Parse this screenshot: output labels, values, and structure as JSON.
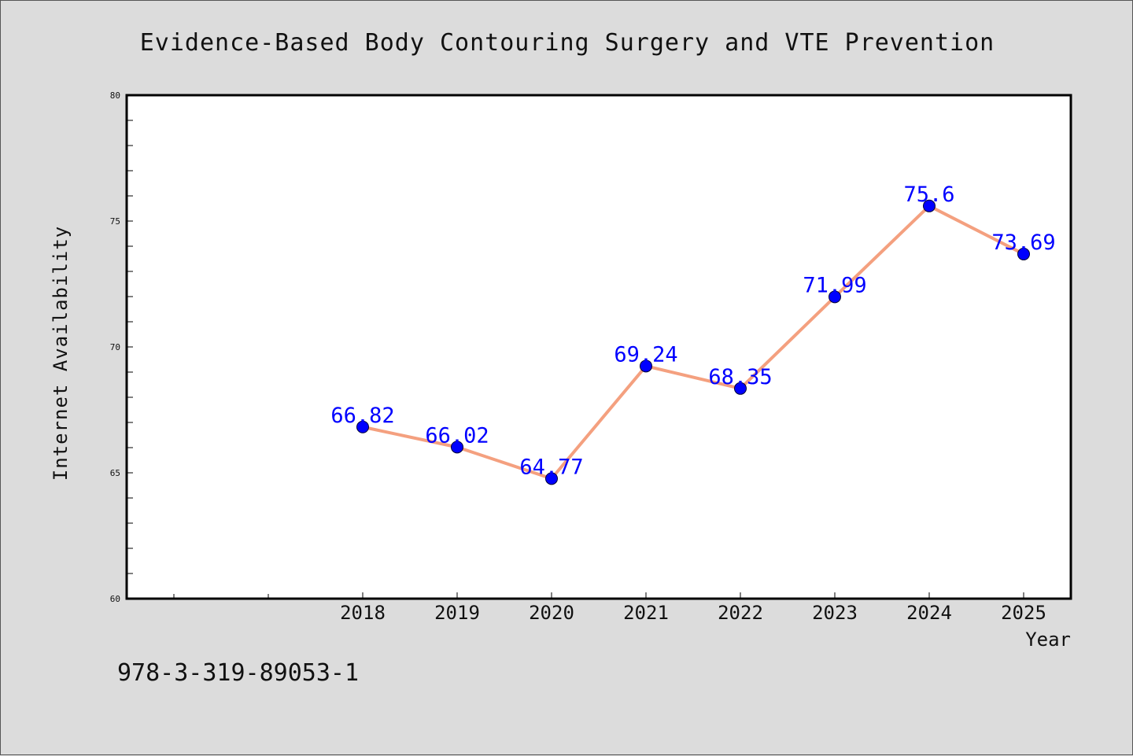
{
  "chart_data": {
    "type": "line",
    "title": "Evidence-Based Body Contouring Surgery and VTE Prevention",
    "xlabel": "Year",
    "ylabel": "Internet Availability",
    "categories": [
      "2018",
      "2019",
      "2020",
      "2021",
      "2022",
      "2023",
      "2024",
      "2025"
    ],
    "series": [
      {
        "values": [
          66.82,
          66.02,
          64.77,
          69.24,
          68.35,
          71.99,
          75.6,
          73.69
        ],
        "labels": [
          "66.82",
          "66.02",
          "64.77",
          "69.24",
          "68.35",
          "71.99",
          "75.6",
          "73.69"
        ]
      }
    ],
    "ylim": [
      60,
      80
    ],
    "yticks": [
      "60",
      "65",
      "70",
      "75",
      "80"
    ],
    "grid": false,
    "legend": "none",
    "colors": {
      "line": "#f4a07f",
      "marker": "#0000ff",
      "data_label": "#0000ff",
      "plot_bg": "#ffffff",
      "page_bg": "#dcdcdc"
    }
  },
  "footer": {
    "isbn": "978-3-319-89053-1"
  }
}
